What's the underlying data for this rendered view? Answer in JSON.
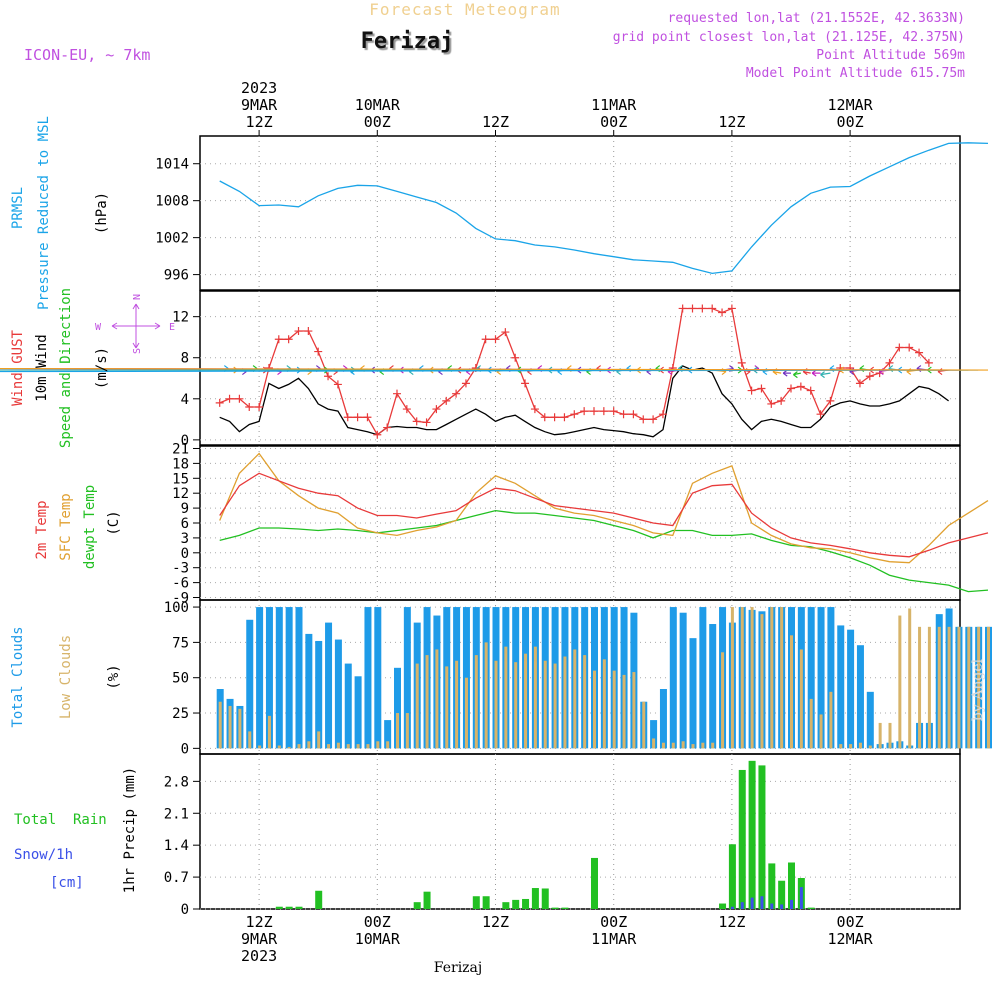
{
  "header": {
    "title": "Forecast Meteogram",
    "location": "Ferizaj",
    "model": "ICON-EU, ~ 7km",
    "info_lines": [
      "requested lon,lat (21.1552E, 42.3633N)",
      "grid point closest lon,lat (21.125E, 42.375N)",
      "Point Altitude 569m",
      "Model Point Altitude 615.75m"
    ],
    "footer_location": "Ferizaj",
    "watermark": "by Angel"
  },
  "colors": {
    "pressure": "#1aa4e8",
    "gust": "#e83a3a",
    "wind": "#000000",
    "t2m": "#e83a3a",
    "tsfc": "#e0a030",
    "dewpt": "#22c022",
    "total_clouds": "#1e9be8",
    "low_clouds": "#d7b46a",
    "rain": "#22c022",
    "snow": "#3a50e8",
    "title": "#f0d090",
    "info": "#c050e0"
  },
  "time_axis": {
    "top_labels": [
      {
        "h": 12,
        "lines": [
          "2023",
          "9MAR",
          "12Z"
        ]
      },
      {
        "h": 24,
        "lines": [
          "10MAR",
          "00Z"
        ]
      },
      {
        "h": 36,
        "lines": [
          "12Z"
        ]
      },
      {
        "h": 48,
        "lines": [
          "11MAR",
          "00Z"
        ]
      },
      {
        "h": 60,
        "lines": [
          "12Z"
        ]
      },
      {
        "h": 72,
        "lines": [
          "12MAR",
          "00Z"
        ]
      }
    ],
    "bottom_labels": [
      {
        "h": 12,
        "lines": [
          "12Z",
          "9MAR",
          "2023"
        ]
      },
      {
        "h": 24,
        "lines": [
          "00Z",
          "10MAR"
        ]
      },
      {
        "h": 36,
        "lines": [
          "12Z"
        ]
      },
      {
        "h": 48,
        "lines": [
          "00Z",
          "11MAR"
        ]
      },
      {
        "h": 60,
        "lines": [
          "12Z"
        ]
      },
      {
        "h": 72,
        "lines": [
          "00Z",
          "12MAR"
        ]
      }
    ]
  },
  "panels": {
    "pressure": {
      "ylabels": [
        "PRMSL",
        "Pressure Reduced to MSL"
      ],
      "units": "(hPa)",
      "ticks": [
        996,
        1002,
        1008,
        1014
      ]
    },
    "wind": {
      "ylabels": [
        "Wind GUST",
        "10m Wind",
        "Speed and Direction"
      ],
      "units": "(m/s)",
      "ticks": [
        0,
        4,
        8,
        12
      ],
      "compass": {
        "n": "N",
        "s": "S",
        "e": "E",
        "w": "W"
      }
    },
    "temp": {
      "ylabels": [
        "2m Temp",
        "SFC Temp",
        "dewpt Temp"
      ],
      "units": "(C)",
      "ticks": [
        -9,
        -6,
        -3,
        0,
        3,
        6,
        9,
        12,
        15,
        18,
        21
      ]
    },
    "clouds": {
      "ylabels": [
        "Total Clouds",
        "Low Clouds"
      ],
      "units": "(%)",
      "ticks": [
        0,
        25,
        50,
        75,
        100
      ]
    },
    "precip": {
      "ylabels": [
        "Total  Rain",
        "Snow/1h",
        "[cm]"
      ],
      "units": "1hr Precip (mm)",
      "ticks": [
        "0",
        "0.7",
        "1.4",
        "2.1",
        "2.8"
      ]
    }
  },
  "chart_data": [
    {
      "type": "line",
      "title": "PRMSL Pressure Reduced to MSL",
      "ylabel": "hPa",
      "x_hours_from_9MAR_00Z": [
        8,
        10,
        12,
        14,
        16,
        18,
        20,
        22,
        24,
        26,
        28,
        30,
        32,
        34,
        36,
        38,
        40,
        42,
        44,
        46,
        48,
        50,
        52,
        54,
        56,
        58,
        60,
        62,
        64,
        66,
        68,
        70,
        72,
        74,
        76,
        78,
        80,
        82,
        84,
        86
      ],
      "values": [
        1011.2,
        1009.5,
        1007.2,
        1007.3,
        1007.0,
        1008.8,
        1010.0,
        1010.5,
        1010.4,
        1009.5,
        1008.6,
        1007.7,
        1006.0,
        1003.5,
        1001.8,
        1001.5,
        1000.8,
        1000.5,
        1000.0,
        999.4,
        998.9,
        998.4,
        998.2,
        998.0,
        997.0,
        996.2,
        996.6,
        1000.5,
        1004.0,
        1007.0,
        1009.2,
        1010.2,
        1010.3,
        1012.0,
        1013.5,
        1015.0,
        1016.2,
        1017.3,
        1017.4,
        1017.3
      ],
      "ylim": [
        993.5,
        1018.5
      ]
    },
    {
      "type": "line",
      "title": "Wind GUST / 10m Wind",
      "ylabel": "m/s",
      "x_hours_from_9MAR_00Z": [
        8,
        9,
        10,
        11,
        12,
        13,
        14,
        15,
        16,
        17,
        18,
        19,
        20,
        21,
        22,
        23,
        24,
        25,
        26,
        27,
        28,
        29,
        30,
        31,
        32,
        33,
        34,
        35,
        36,
        37,
        38,
        39,
        40,
        41,
        42,
        43,
        44,
        45,
        46,
        47,
        48,
        49,
        50,
        51,
        52,
        53,
        54,
        55,
        56,
        57,
        58,
        59,
        60,
        61,
        62,
        63,
        64,
        65,
        66,
        67,
        68,
        69,
        70,
        71,
        72,
        73,
        74,
        75,
        76,
        77,
        78,
        79,
        80,
        81,
        82,
        83,
        84,
        85,
        86
      ],
      "series": [
        {
          "name": "Wind GUST",
          "values": [
            3.6,
            4.0,
            4.0,
            3.2,
            3.2,
            7.0,
            9.8,
            9.8,
            10.6,
            10.6,
            8.6,
            6.2,
            5.4,
            2.2,
            2.2,
            2.2,
            0.5,
            1.2,
            4.5,
            3.0,
            1.8,
            1.7,
            3.0,
            3.8,
            4.5,
            5.5,
            7.0,
            9.8,
            9.8,
            10.5,
            8.0,
            5.5,
            3.0,
            2.2,
            2.2,
            2.2,
            2.5,
            2.8,
            2.8,
            2.8,
            2.8,
            2.5,
            2.5,
            2.0,
            2.0,
            2.5,
            7.0,
            12.8,
            12.8,
            12.8,
            12.8,
            12.4,
            12.8,
            7.5,
            4.8,
            5.0,
            3.5,
            3.8,
            5.0,
            5.2,
            4.8,
            2.5,
            3.8,
            7.0,
            7.0,
            5.5,
            6.2,
            6.5,
            7.5,
            9.0,
            9.0,
            8.5,
            7.5
          ]
        },
        {
          "name": "10m Wind",
          "values": [
            2.2,
            1.8,
            0.8,
            1.5,
            1.8,
            5.5,
            5.0,
            5.4,
            6.0,
            5.0,
            3.5,
            3.0,
            2.8,
            1.2,
            1.0,
            0.8,
            0.5,
            1.2,
            1.3,
            1.2,
            1.2,
            1.0,
            1.0,
            1.5,
            2.0,
            2.5,
            3.0,
            2.5,
            1.8,
            2.2,
            2.4,
            1.8,
            1.2,
            0.8,
            0.5,
            0.6,
            0.8,
            1.0,
            1.2,
            1.0,
            0.9,
            0.8,
            0.6,
            0.5,
            0.3,
            1.0,
            6.0,
            7.2,
            6.8,
            7.0,
            6.5,
            4.5,
            3.5,
            2.0,
            1.0,
            1.8,
            2.0,
            1.8,
            1.5,
            1.2,
            1.2,
            2.0,
            3.2,
            3.6,
            3.8,
            3.5,
            3.3,
            3.3,
            3.5,
            3.8,
            4.5,
            5.2,
            5.0,
            4.5,
            3.8
          ]
        }
      ],
      "ylim": [
        -0.5,
        14.5
      ]
    },
    {
      "type": "line",
      "title": "2m Temp / SFC Temp / dewpt Temp",
      "ylabel": "C",
      "x_hours_from_9MAR_00Z": [
        8,
        10,
        12,
        14,
        16,
        18,
        20,
        22,
        24,
        26,
        28,
        30,
        32,
        34,
        36,
        38,
        40,
        42,
        44,
        46,
        48,
        50,
        52,
        54,
        56,
        58,
        60,
        62,
        64,
        66,
        68,
        70,
        72,
        74,
        76,
        78,
        80,
        82,
        84,
        86
      ],
      "series": [
        {
          "name": "2m Temp",
          "values": [
            7.5,
            13.5,
            16.0,
            14.5,
            13.0,
            12.0,
            11.5,
            9.0,
            7.5,
            7.5,
            7.0,
            7.8,
            8.5,
            11.0,
            13.0,
            12.5,
            11.0,
            9.5,
            9.0,
            8.5,
            8.0,
            7.0,
            6.0,
            5.5,
            12.0,
            13.5,
            13.8,
            8.0,
            5.0,
            3.0,
            2.0,
            1.5,
            0.8,
            0.0,
            -0.5,
            -0.8,
            0.5,
            2.0,
            3.0,
            4.0
          ]
        },
        {
          "name": "SFC Temp",
          "values": [
            6.5,
            16.0,
            20.0,
            14.5,
            11.5,
            9.0,
            8.0,
            5.0,
            4.0,
            3.5,
            4.5,
            5.2,
            6.5,
            12.0,
            15.5,
            14.0,
            11.5,
            9.0,
            8.0,
            7.5,
            6.5,
            5.5,
            4.0,
            3.5,
            14.0,
            16.0,
            17.5,
            6.0,
            3.5,
            1.8,
            1.0,
            0.8,
            0.0,
            -1.0,
            -1.8,
            -2.0,
            1.5,
            5.5,
            8.0,
            10.5
          ]
        },
        {
          "name": "dewpt Temp",
          "values": [
            2.5,
            3.5,
            5.0,
            5.0,
            4.8,
            4.5,
            4.8,
            4.5,
            4.0,
            4.5,
            5.0,
            5.5,
            6.5,
            7.5,
            8.5,
            8.0,
            8.0,
            7.5,
            7.0,
            6.5,
            5.5,
            4.5,
            3.0,
            4.5,
            4.5,
            3.5,
            3.5,
            3.8,
            2.5,
            1.5,
            1.2,
            0.2,
            -1.0,
            -2.5,
            -4.5,
            -5.5,
            -6.0,
            -6.5,
            -7.8,
            -7.5
          ]
        }
      ],
      "ylim": [
        -9.5,
        21.5
      ]
    },
    {
      "type": "bar",
      "title": "Total Clouds / Low Clouds",
      "ylabel": "%",
      "x_hours_from_9MAR_00Z": [
        8,
        9,
        10,
        11,
        12,
        13,
        14,
        15,
        16,
        17,
        18,
        19,
        20,
        21,
        22,
        23,
        24,
        25,
        26,
        27,
        28,
        29,
        30,
        31,
        32,
        33,
        34,
        35,
        36,
        37,
        38,
        39,
        40,
        41,
        42,
        43,
        44,
        45,
        46,
        47,
        48,
        49,
        50,
        51,
        52,
        53,
        54,
        55,
        56,
        57,
        58,
        59,
        60,
        61,
        62,
        63,
        64,
        65,
        66,
        67,
        68,
        69,
        70,
        71,
        72,
        73,
        74,
        75,
        76,
        77,
        78,
        79,
        80,
        81,
        82,
        83,
        84,
        85,
        86
      ],
      "series": [
        {
          "name": "Total Clouds",
          "values": [
            42,
            35,
            30,
            91,
            100,
            100,
            100,
            100,
            100,
            81,
            76,
            89,
            77,
            60,
            51,
            100,
            100,
            20,
            57,
            100,
            89,
            100,
            94,
            100,
            100,
            100,
            100,
            100,
            100,
            100,
            100,
            100,
            100,
            100,
            100,
            100,
            100,
            100,
            100,
            100,
            100,
            100,
            96,
            33,
            20,
            42,
            100,
            96,
            78,
            100,
            88,
            100,
            89,
            100,
            98,
            97,
            100,
            100,
            100,
            100,
            100,
            100,
            100,
            87,
            84,
            73,
            40,
            3,
            4,
            5,
            2,
            18,
            18,
            95,
            99,
            86,
            86,
            86,
            86
          ]
        },
        {
          "name": "Low Clouds",
          "values": [
            33,
            30,
            28,
            12,
            2,
            23,
            2,
            1,
            3,
            5,
            12,
            3,
            4,
            3,
            3,
            3,
            5,
            5,
            25,
            25,
            60,
            66,
            70,
            58,
            62,
            50,
            66,
            75,
            62,
            72,
            61,
            67,
            72,
            62,
            60,
            65,
            70,
            66,
            55,
            63,
            55,
            52,
            54,
            33,
            7,
            4,
            4,
            5,
            3,
            4,
            4,
            68,
            100,
            100,
            100,
            95,
            100,
            100,
            80,
            70,
            35,
            24,
            40,
            3,
            3,
            4,
            2,
            18,
            18,
            94,
            99,
            86,
            86,
            86,
            86,
            86,
            86,
            86,
            86
          ]
        }
      ],
      "ylim": [
        -4,
        105
      ]
    },
    {
      "type": "bar",
      "title": "1hr Precip",
      "ylabel": "mm",
      "x_hours_from_9MAR_00Z": [
        14,
        15,
        16,
        18,
        28,
        29,
        34,
        35,
        37,
        38,
        39,
        40,
        41,
        42,
        43,
        46,
        59,
        60,
        61,
        62,
        63,
        64,
        65,
        66,
        67,
        68
      ],
      "series": [
        {
          "name": "Total Rain",
          "values": [
            0.05,
            0.05,
            0.05,
            0.4,
            0.15,
            0.38,
            0.28,
            0.28,
            0.15,
            0.2,
            0.22,
            0.46,
            0.45,
            0.03,
            0.03,
            1.12,
            0.12,
            1.42,
            3.05,
            3.25,
            3.15,
            1.0,
            0.62,
            1.02,
            0.68,
            0.03
          ]
        },
        {
          "name": "Snow/1h",
          "values": [
            0,
            0,
            0,
            0,
            0,
            0,
            0,
            0,
            0,
            0,
            0,
            0,
            0,
            0,
            0,
            0,
            0,
            0.05,
            0.15,
            0.25,
            0.28,
            0.12,
            0.1,
            0.2,
            0.48,
            0
          ]
        }
      ],
      "ylim": [
        0,
        3.4
      ]
    }
  ]
}
